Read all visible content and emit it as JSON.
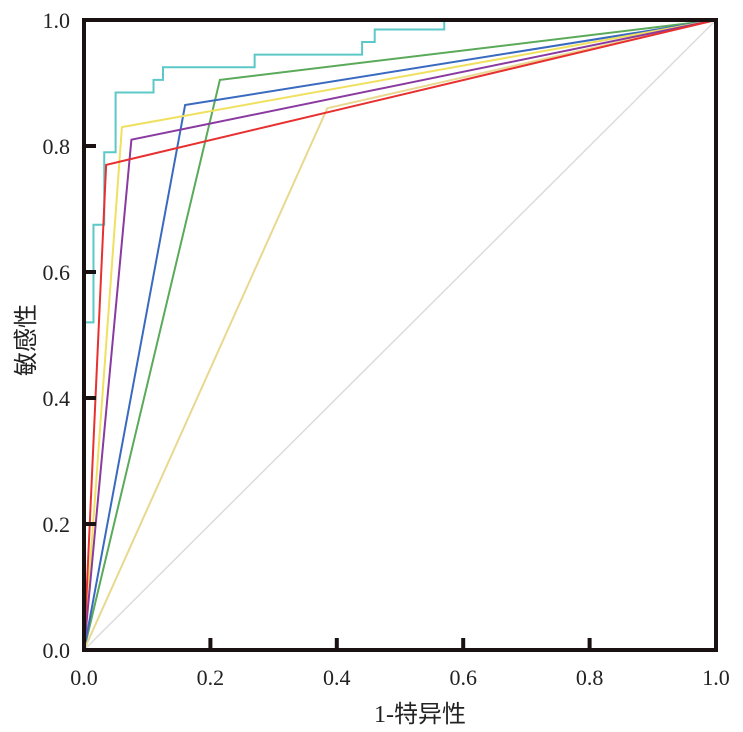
{
  "chart_data": {
    "type": "line",
    "title": "",
    "xlabel": "1-特异性",
    "ylabel": "敏感性",
    "xlim": [
      0,
      1
    ],
    "ylim": [
      0,
      1
    ],
    "grid": false,
    "x_ticks": [
      "0.0",
      "0.2",
      "0.4",
      "0.6",
      "0.8",
      "1.0"
    ],
    "y_ticks": [
      "0.0",
      "0.2",
      "0.4",
      "0.6",
      "0.8",
      "1.0"
    ],
    "reference_line": {
      "color": "#dcdcdc",
      "points": [
        [
          0,
          0
        ],
        [
          1,
          1
        ]
      ]
    },
    "series": [
      {
        "color": "#5cc8c8",
        "points": [
          [
            0,
            0
          ],
          [
            0,
            0.52
          ],
          [
            0.015,
            0.52
          ],
          [
            0.015,
            0.675
          ],
          [
            0.032,
            0.675
          ],
          [
            0.032,
            0.79
          ],
          [
            0.05,
            0.79
          ],
          [
            0.05,
            0.885
          ],
          [
            0.11,
            0.885
          ],
          [
            0.11,
            0.905
          ],
          [
            0.125,
            0.905
          ],
          [
            0.125,
            0.925
          ],
          [
            0.27,
            0.925
          ],
          [
            0.27,
            0.945
          ],
          [
            0.44,
            0.945
          ],
          [
            0.44,
            0.965
          ],
          [
            0.46,
            0.965
          ],
          [
            0.46,
            0.985
          ],
          [
            0.57,
            0.985
          ],
          [
            0.57,
            1.0
          ],
          [
            1.0,
            1.0
          ]
        ]
      },
      {
        "color": "#5aaa5a",
        "points": [
          [
            0,
            0
          ],
          [
            0.215,
            0.905
          ],
          [
            1,
            1
          ]
        ]
      },
      {
        "color": "#3a6ac0",
        "points": [
          [
            0,
            0
          ],
          [
            0.16,
            0.865
          ],
          [
            1,
            1
          ]
        ]
      },
      {
        "color": "#f0e060",
        "points": [
          [
            0,
            0
          ],
          [
            0.06,
            0.83
          ],
          [
            1,
            1
          ]
        ]
      },
      {
        "color": "#e8d890",
        "points": [
          [
            0,
            0
          ],
          [
            0.385,
            0.86
          ],
          [
            1,
            1
          ]
        ]
      },
      {
        "color": "#8a3aa0",
        "points": [
          [
            0,
            0
          ],
          [
            0.075,
            0.81
          ],
          [
            1,
            1
          ]
        ]
      },
      {
        "color": "#e83030",
        "points": [
          [
            0,
            0
          ],
          [
            0.035,
            0.77
          ],
          [
            1,
            1
          ]
        ]
      }
    ]
  }
}
